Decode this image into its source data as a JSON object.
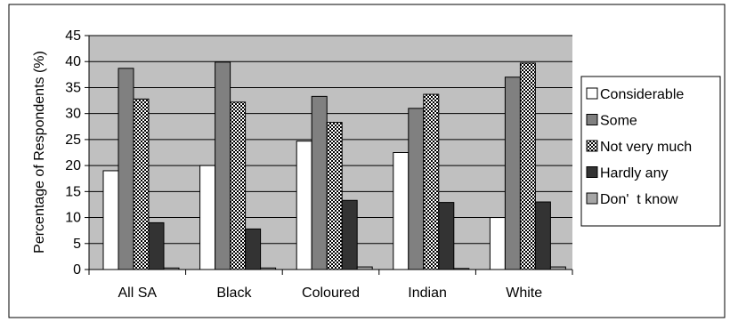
{
  "chart_data": {
    "type": "bar",
    "title": "",
    "xlabel": "",
    "ylabel": "Percentage of Respondents (%)",
    "ylim": [
      0,
      45
    ],
    "yticks": [
      "0",
      "5",
      "10",
      "15",
      "20",
      "25",
      "30",
      "35",
      "40",
      "45"
    ],
    "categories": [
      "All SA",
      "Black",
      "Coloured",
      "Indian",
      "White"
    ],
    "grid": "horizontal",
    "legend_position": "right",
    "plot_background": "#c0c0c0",
    "series": [
      {
        "name": "Considerable",
        "color": "#ffffff",
        "pattern": "solid",
        "values": [
          19,
          20,
          24.7,
          22.5,
          10
        ]
      },
      {
        "name": "Some",
        "color": "#808080",
        "pattern": "solid",
        "values": [
          38.7,
          39.9,
          33.3,
          31,
          37
        ]
      },
      {
        "name": "Not very much",
        "color": "#ffffff",
        "pattern": "checker",
        "values": [
          32.8,
          32.2,
          28.3,
          33.7,
          39.7
        ]
      },
      {
        "name": "Hardly any",
        "color": "#333333",
        "pattern": "solid",
        "values": [
          9,
          7.8,
          13.3,
          12.9,
          13
        ]
      },
      {
        "name": "Don'  t know",
        "color": "#a6a6a6",
        "pattern": "solid",
        "values": [
          0.3,
          0.3,
          0.5,
          0.2,
          0.5
        ]
      }
    ]
  }
}
